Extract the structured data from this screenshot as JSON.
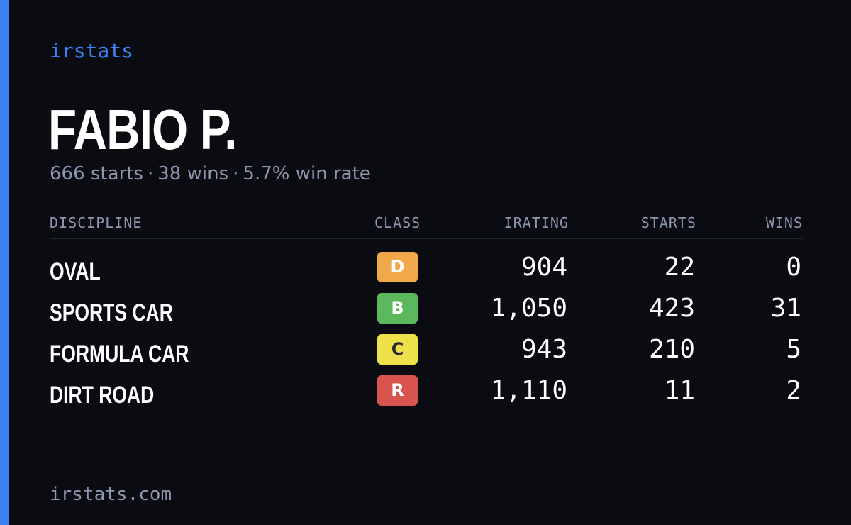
{
  "brand": "irstats",
  "player": {
    "name": "FABIO P."
  },
  "summary": {
    "starts": "666 starts",
    "wins": "38 wins",
    "win_rate": "5.7% win rate",
    "separator": "·"
  },
  "table": {
    "headers": {
      "discipline": "DISCIPLINE",
      "class": "CLASS",
      "irating": "IRATING",
      "starts": "STARTS",
      "wins": "WINS"
    },
    "rows": [
      {
        "discipline": "OVAL",
        "class": "D",
        "class_color": "#f0a84a",
        "class_text_color": "#ffffff",
        "irating": "904",
        "starts": "22",
        "wins": "0"
      },
      {
        "discipline": "SPORTS CAR",
        "class": "B",
        "class_color": "#5cb85c",
        "class_text_color": "#ffffff",
        "irating": "1,050",
        "starts": "423",
        "wins": "31"
      },
      {
        "discipline": "FORMULA CAR",
        "class": "C",
        "class_color": "#ede04a",
        "class_text_color": "#2a2a2a",
        "irating": "943",
        "starts": "210",
        "wins": "5"
      },
      {
        "discipline": "DIRT ROAD",
        "class": "R",
        "class_color": "#d9534f",
        "class_text_color": "#ffffff",
        "irating": "1,110",
        "starts": "11",
        "wins": "2"
      }
    ]
  },
  "footer": {
    "url": "irstats.com"
  },
  "colors": {
    "background": "#0a0c12",
    "accent": "#3b82f6",
    "muted_text": "#8a97ad"
  }
}
